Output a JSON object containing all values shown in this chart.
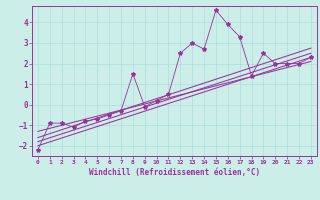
{
  "title": "",
  "xlabel": "Windchill (Refroidissement éolien,°C)",
  "ylabel": "",
  "xlim": [
    -0.5,
    23.5
  ],
  "ylim": [
    -2.5,
    4.8
  ],
  "xticks": [
    0,
    1,
    2,
    3,
    4,
    5,
    6,
    7,
    8,
    9,
    10,
    11,
    12,
    13,
    14,
    15,
    16,
    17,
    18,
    19,
    20,
    21,
    22,
    23
  ],
  "yticks": [
    -2,
    -1,
    0,
    1,
    2,
    3,
    4
  ],
  "bg_color": "#cceee8",
  "line_color": "#993399",
  "grid_color": "#aadddd",
  "scatter_x": [
    0,
    1,
    2,
    3,
    4,
    5,
    6,
    7,
    8,
    9,
    10,
    11,
    12,
    13,
    14,
    15,
    16,
    17,
    18,
    19,
    20,
    21,
    22,
    23
  ],
  "scatter_y": [
    -2.2,
    -0.9,
    -0.9,
    -1.1,
    -0.8,
    -0.7,
    -0.5,
    -0.3,
    1.5,
    -0.1,
    0.2,
    0.5,
    2.5,
    3.0,
    2.7,
    4.6,
    3.9,
    3.3,
    1.4,
    2.5,
    2.0,
    2.0,
    2.0,
    2.3
  ],
  "line1_x": [
    0,
    23
  ],
  "line1_y": [
    -2.0,
    2.3
  ],
  "line2_x": [
    0,
    23
  ],
  "line2_y": [
    -1.6,
    2.75
  ],
  "line3_x": [
    0,
    23
  ],
  "line3_y": [
    -1.3,
    2.1
  ],
  "line4_x": [
    0,
    23
  ],
  "line4_y": [
    -1.8,
    2.5
  ]
}
